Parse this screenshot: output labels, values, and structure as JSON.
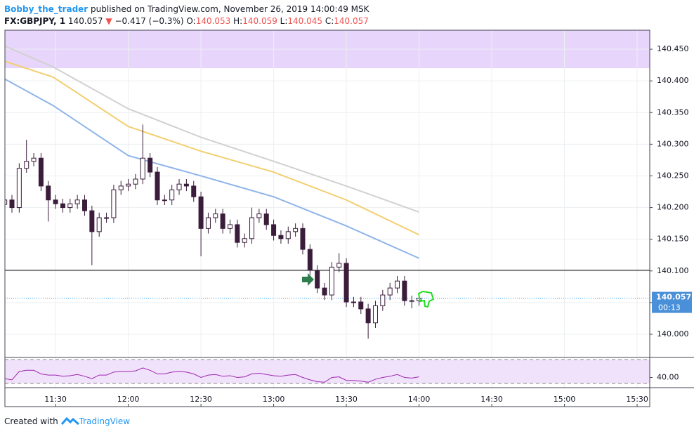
{
  "header": {
    "author": "Bobby_the_trader",
    "published": "published on TradingView.com, November 26, 2019 14:00:49 MSK",
    "symbol": "FX:GBPJPY, 1",
    "price": "140.057",
    "arrow": "▼",
    "change": "−0.417 (−0.3%)",
    "o_label": "O:",
    "o": "140.053",
    "h_label": "H:",
    "h": "140.059",
    "l_label": "L:",
    "l": "140.045",
    "c_label": "C:",
    "c": "140.057"
  },
  "footer": {
    "text": "Created with",
    "brand": "TradingView"
  },
  "chart_data": [
    {
      "type": "candlestick",
      "x": [
        669,
        672,
        675,
        678,
        681,
        684,
        687,
        690,
        693,
        696,
        699,
        702,
        705,
        708,
        711,
        714,
        717,
        720,
        723,
        726,
        729,
        732,
        735,
        738,
        741,
        744,
        747,
        750,
        753,
        756,
        759,
        762,
        765,
        768,
        771,
        774,
        777,
        780,
        783,
        786,
        789,
        792,
        795,
        798,
        801,
        804,
        807,
        810,
        813,
        816,
        819,
        822,
        825,
        828,
        831,
        834,
        837,
        840
      ],
      "open": [
        140.205,
        140.212,
        140.2,
        140.262,
        140.273,
        140.278,
        140.234,
        140.212,
        140.206,
        140.2,
        140.206,
        140.212,
        140.195,
        140.162,
        140.184,
        140.184,
        140.228,
        140.234,
        140.237,
        140.245,
        140.278,
        140.256,
        140.212,
        140.212,
        140.228,
        140.237,
        140.234,
        140.217,
        140.167,
        140.184,
        140.19,
        140.167,
        140.173,
        140.145,
        140.151,
        140.184,
        140.19,
        140.173,
        140.156,
        140.151,
        140.162,
        140.167,
        140.134,
        140.101,
        140.073,
        140.062,
        140.106,
        140.112,
        140.051,
        140.051,
        140.04,
        140.018,
        140.045,
        140.062,
        140.073,
        140.084,
        140.053,
        140.053
      ],
      "high": [
        140.22,
        140.22,
        140.27,
        140.307,
        140.286,
        140.286,
        140.242,
        140.22,
        140.214,
        140.214,
        140.22,
        140.22,
        140.203,
        140.192,
        140.192,
        140.236,
        140.242,
        140.245,
        140.253,
        140.331,
        140.286,
        140.264,
        140.22,
        140.236,
        140.245,
        140.245,
        140.242,
        140.225,
        140.192,
        140.198,
        140.198,
        140.181,
        140.181,
        140.159,
        140.2,
        140.198,
        140.198,
        140.181,
        140.164,
        140.17,
        140.175,
        140.175,
        140.142,
        140.109,
        140.081,
        140.114,
        140.128,
        140.12,
        140.059,
        140.059,
        140.048,
        140.053,
        140.07,
        140.081,
        140.092,
        140.092,
        140.061,
        140.059
      ],
      "low": [
        140.185,
        140.192,
        140.192,
        140.255,
        140.265,
        140.226,
        140.178,
        140.198,
        140.192,
        140.192,
        140.198,
        140.187,
        140.109,
        140.154,
        140.176,
        140.176,
        140.22,
        140.226,
        140.229,
        140.237,
        140.248,
        140.204,
        140.204,
        140.204,
        140.22,
        140.226,
        140.209,
        140.123,
        140.159,
        140.176,
        140.159,
        140.159,
        140.137,
        140.137,
        140.143,
        140.176,
        140.165,
        140.148,
        140.143,
        140.143,
        140.154,
        140.126,
        140.093,
        140.065,
        140.054,
        140.054,
        140.098,
        140.043,
        140.043,
        140.032,
        139.993,
        140.01,
        140.037,
        140.054,
        140.065,
        140.045,
        140.041,
        140.045
      ],
      "close": [
        140.212,
        140.2,
        140.262,
        140.273,
        140.278,
        140.234,
        140.212,
        140.206,
        140.2,
        140.206,
        140.212,
        140.195,
        140.162,
        140.184,
        140.184,
        140.228,
        140.234,
        140.237,
        140.245,
        140.278,
        140.256,
        140.212,
        140.212,
        140.228,
        140.237,
        140.234,
        140.217,
        140.167,
        140.184,
        140.19,
        140.167,
        140.173,
        140.145,
        140.151,
        140.184,
        140.19,
        140.173,
        140.156,
        140.151,
        140.162,
        140.167,
        140.134,
        140.101,
        140.073,
        140.062,
        140.106,
        140.112,
        140.051,
        140.051,
        140.04,
        140.018,
        140.045,
        140.062,
        140.073,
        140.084,
        140.053,
        140.053,
        140.057
      ],
      "up_color": "#ffffff",
      "down_color": "#3a1d3a",
      "series": [
        {
          "color": "#d1d1d1",
          "x": [
            669,
            689,
            720,
            750,
            780,
            810,
            840
          ],
          "values": [
            140.455,
            140.422,
            140.356,
            140.311,
            140.273,
            140.234,
            140.193
          ]
        },
        {
          "color": "#f2cf6f",
          "x": [
            669,
            689,
            720,
            750,
            780,
            810,
            840
          ],
          "values": [
            140.431,
            140.406,
            140.328,
            140.289,
            140.256,
            140.212,
            140.157
          ]
        },
        {
          "color": "#8fb4ea",
          "x": [
            669,
            689,
            720,
            750,
            780,
            810,
            840
          ],
          "values": [
            140.403,
            140.361,
            140.282,
            140.25,
            140.217,
            140.171,
            140.12
          ]
        }
      ],
      "zone": [
        140.42,
        140.48
      ],
      "zone_color": "#e8d5fb",
      "hline": 140.101,
      "last_price": 140.057,
      "countdown": "00:13",
      "xlim": [
        669.1,
        935.2
      ],
      "ylim": [
        139.9645,
        140.48
      ],
      "xticks": [
        {
          "value": 690,
          "label": "11:30"
        },
        {
          "value": 720,
          "label": "12:00"
        },
        {
          "value": 750,
          "label": "12:30"
        },
        {
          "value": 780,
          "label": "13:00"
        },
        {
          "value": 810,
          "label": "13:30"
        },
        {
          "value": 840,
          "label": "14:00"
        },
        {
          "value": 870,
          "label": "14:30"
        },
        {
          "value": 900,
          "label": "15:00"
        },
        {
          "value": 930,
          "label": "15:30"
        }
      ],
      "yticks": [
        {
          "value": 140.0,
          "label": "140.000"
        },
        {
          "value": 140.05,
          "label": "140.050"
        },
        {
          "value": 140.1,
          "label": "140.100"
        },
        {
          "value": 140.15,
          "label": "140.150"
        },
        {
          "value": 140.2,
          "label": "140.200"
        },
        {
          "value": 140.25,
          "label": "140.250"
        },
        {
          "value": 140.3,
          "label": "140.300"
        },
        {
          "value": 140.35,
          "label": "140.350"
        },
        {
          "value": 140.4,
          "label": "140.400"
        },
        {
          "value": 140.45,
          "label": "140.450"
        }
      ],
      "grid": true
    },
    {
      "type": "line",
      "x": [
        669,
        672,
        675,
        678,
        681,
        684,
        687,
        690,
        693,
        696,
        699,
        702,
        705,
        708,
        711,
        714,
        717,
        720,
        723,
        726,
        729,
        732,
        735,
        738,
        741,
        744,
        747,
        750,
        753,
        756,
        759,
        762,
        765,
        768,
        771,
        774,
        777,
        780,
        783,
        786,
        789,
        792,
        795,
        798,
        801,
        804,
        807,
        810,
        813,
        816,
        819,
        822,
        825,
        828,
        831,
        834,
        837,
        840
      ],
      "values": [
        38,
        36,
        50,
        52,
        52,
        46,
        44,
        44,
        42,
        43,
        45,
        42,
        38,
        44,
        44,
        49,
        50,
        50,
        51,
        56,
        52,
        46,
        46,
        49,
        50,
        49,
        46,
        40,
        44,
        45,
        42,
        43,
        40,
        41,
        46,
        47,
        45,
        43,
        42,
        44,
        45,
        40,
        36,
        33,
        32,
        40,
        41,
        35,
        35,
        34,
        32,
        37,
        40,
        42,
        45,
        40,
        39,
        41
      ],
      "color": "#9c27b0",
      "bands": [
        30,
        70
      ],
      "band_color": "#f1e2fb",
      "xlim": [
        669.1,
        935.2
      ],
      "ylim": [
        22.94,
        72.35
      ],
      "yticks": [
        {
          "value": 40,
          "label": "40.00"
        }
      ]
    }
  ]
}
